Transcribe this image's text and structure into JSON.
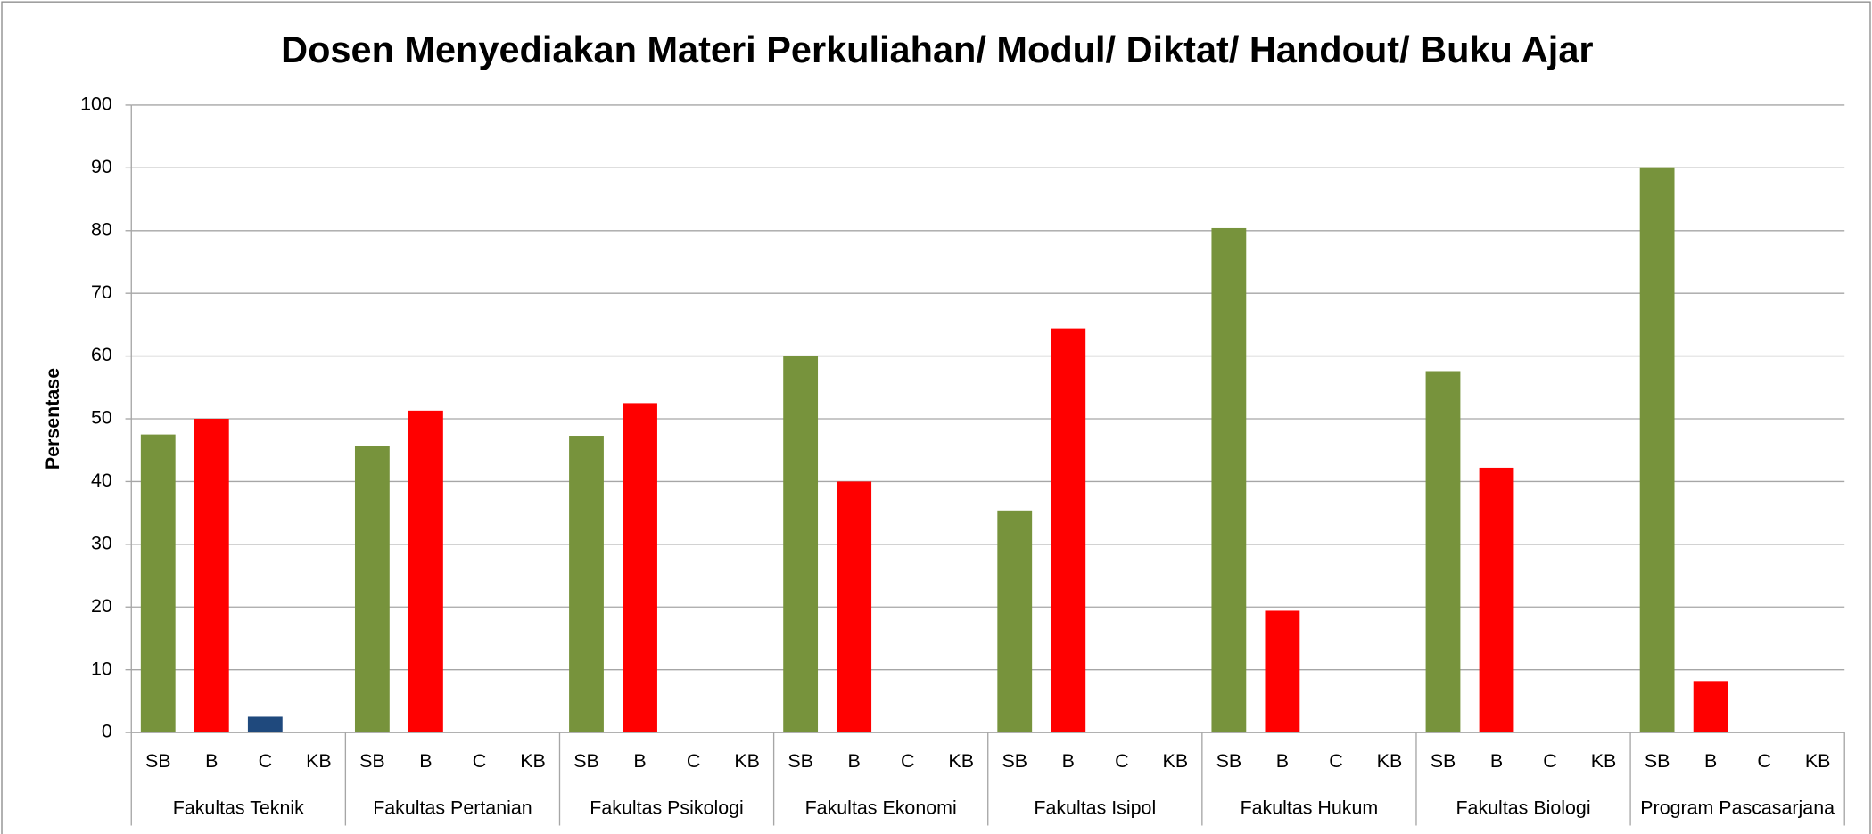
{
  "chart_data": {
    "type": "bar",
    "title": "Dosen Menyediakan Materi Perkuliahan/ Modul/ Diktat/ Handout/ Buku Ajar",
    "y_label": "Persentase",
    "categories": [
      "Fakultas Teknik",
      "Fakultas Pertanian",
      "Fakultas Psikologi",
      "Fakultas Ekonomi",
      "Fakultas Isipol",
      "Fakultas Hukum",
      "Fakultas Biologi",
      "Program Pascasarjana"
    ],
    "series": [
      {
        "name": "SB",
        "color": "#77933c",
        "values": [
          47.5,
          45.6,
          47.3,
          60,
          35.4,
          80.4,
          57.6,
          90.1
        ]
      },
      {
        "name": "B",
        "color": "#ff0000",
        "values": [
          50,
          51.3,
          52.5,
          40,
          64.4,
          19.4,
          42.2,
          8.2
        ]
      },
      {
        "name": "C",
        "color": "#1f497d",
        "values": [
          2.5,
          0,
          0,
          0,
          0,
          0,
          0,
          0
        ]
      },
      {
        "name": "KB",
        "values": [
          0,
          0,
          0,
          0,
          0,
          0,
          0,
          0
        ]
      }
    ],
    "ylim": [
      0,
      100
    ],
    "yticks": [
      0,
      10,
      20,
      30,
      40,
      50,
      60,
      70,
      80,
      90,
      100
    ],
    "grid": true
  }
}
